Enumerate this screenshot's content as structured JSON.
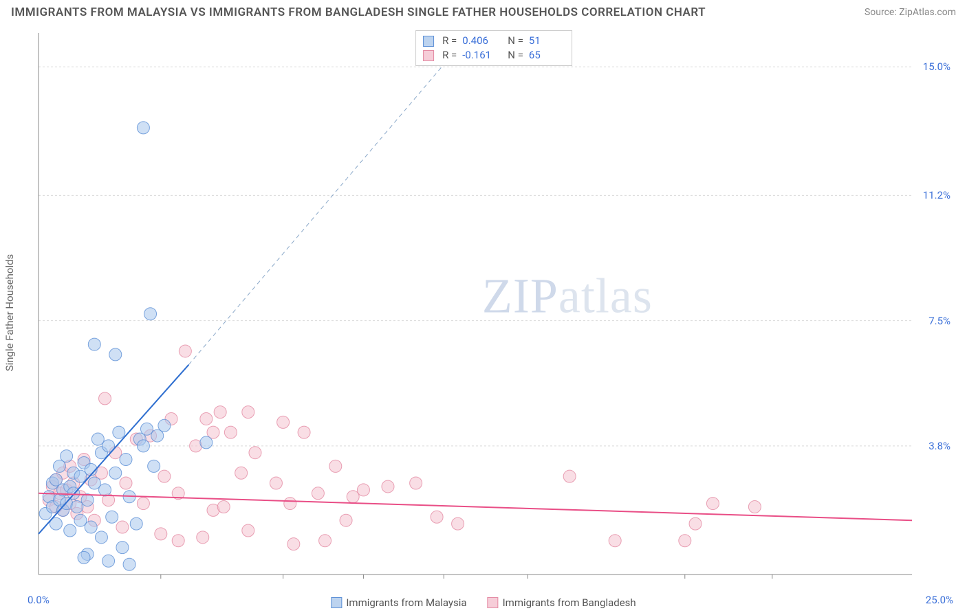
{
  "title": "IMMIGRANTS FROM MALAYSIA VS IMMIGRANTS FROM BANGLADESH SINGLE FATHER HOUSEHOLDS CORRELATION CHART",
  "source": "Source: ZipAtlas.com",
  "y_axis_label": "Single Father Households",
  "watermark_a": "ZIP",
  "watermark_b": "atlas",
  "chart": {
    "type": "scatter",
    "background_color": "#ffffff",
    "grid_color": "#d9d9d9",
    "grid_dash": "3,3",
    "axis_color": "#888888",
    "xlim": [
      0,
      25.0
    ],
    "ylim": [
      0,
      16.0
    ],
    "x_origin_label": "0.0%",
    "x_max_label": "25.0%",
    "y_ticks": [
      {
        "value": 3.8,
        "label": "3.8%"
      },
      {
        "value": 7.5,
        "label": "7.5%"
      },
      {
        "value": 11.2,
        "label": "11.2%"
      },
      {
        "value": 15.0,
        "label": "15.0%"
      }
    ],
    "x_tick_positions": [
      3.5,
      7.0,
      9.3,
      11.6,
      14.0,
      18.5,
      21.0
    ],
    "marker_radius": 9,
    "marker_opacity": 0.55,
    "series": [
      {
        "name": "Immigrants from Malaysia",
        "color_fill": "#a8c6ec",
        "color_stroke": "#5b8fd6",
        "legend_fill": "#bcd3ef",
        "R": "0.406",
        "N": "51",
        "trend": {
          "x1": 0.0,
          "y1": 1.2,
          "x2": 4.3,
          "y2": 6.2,
          "color": "#2f6fd0",
          "width": 2
        },
        "trend_ext": {
          "x1": 4.3,
          "y1": 6.2,
          "x2": 12.2,
          "y2": 15.8,
          "color": "#8aa8c9",
          "dash": "6,5",
          "width": 1
        },
        "points": [
          [
            0.2,
            1.8
          ],
          [
            0.3,
            2.3
          ],
          [
            0.4,
            2.0
          ],
          [
            0.4,
            2.7
          ],
          [
            0.5,
            1.5
          ],
          [
            0.5,
            2.8
          ],
          [
            0.6,
            2.2
          ],
          [
            0.6,
            3.2
          ],
          [
            0.7,
            1.9
          ],
          [
            0.7,
            2.5
          ],
          [
            0.8,
            2.1
          ],
          [
            0.8,
            3.5
          ],
          [
            0.9,
            2.6
          ],
          [
            0.9,
            1.3
          ],
          [
            1.0,
            2.4
          ],
          [
            1.0,
            3.0
          ],
          [
            1.1,
            2.0
          ],
          [
            1.2,
            2.9
          ],
          [
            1.2,
            1.6
          ],
          [
            1.3,
            3.3
          ],
          [
            1.4,
            2.2
          ],
          [
            1.4,
            0.6
          ],
          [
            1.5,
            3.1
          ],
          [
            1.5,
            1.4
          ],
          [
            1.6,
            2.7
          ],
          [
            1.7,
            4.0
          ],
          [
            1.8,
            1.1
          ],
          [
            1.8,
            3.6
          ],
          [
            1.9,
            2.5
          ],
          [
            2.0,
            0.4
          ],
          [
            2.0,
            3.8
          ],
          [
            2.1,
            1.7
          ],
          [
            2.2,
            3.0
          ],
          [
            2.3,
            4.2
          ],
          [
            2.4,
            0.8
          ],
          [
            2.5,
            3.4
          ],
          [
            2.6,
            2.3
          ],
          [
            2.8,
            1.5
          ],
          [
            2.9,
            4.0
          ],
          [
            3.0,
            3.8
          ],
          [
            3.1,
            4.3
          ],
          [
            3.3,
            3.2
          ],
          [
            3.4,
            4.1
          ],
          [
            3.6,
            4.4
          ],
          [
            1.6,
            6.8
          ],
          [
            2.2,
            6.5
          ],
          [
            3.2,
            7.7
          ],
          [
            4.8,
            3.9
          ],
          [
            1.3,
            0.5
          ],
          [
            2.6,
            0.3
          ],
          [
            3.0,
            13.2
          ]
        ]
      },
      {
        "name": "Immigrants from Bangladesh",
        "color_fill": "#f4c2cf",
        "color_stroke": "#e48aa3",
        "legend_fill": "#f6cdd8",
        "R": "-0.161",
        "N": "65",
        "trend": {
          "x1": 0.0,
          "y1": 2.4,
          "x2": 25.0,
          "y2": 1.6,
          "color": "#e94e86",
          "width": 2
        },
        "points": [
          [
            0.3,
            2.2
          ],
          [
            0.4,
            2.6
          ],
          [
            0.5,
            2.0
          ],
          [
            0.5,
            2.8
          ],
          [
            0.6,
            2.4
          ],
          [
            0.7,
            1.9
          ],
          [
            0.7,
            3.0
          ],
          [
            0.8,
            2.5
          ],
          [
            0.9,
            2.1
          ],
          [
            0.9,
            3.2
          ],
          [
            1.0,
            2.7
          ],
          [
            1.1,
            1.8
          ],
          [
            1.2,
            2.3
          ],
          [
            1.3,
            3.4
          ],
          [
            1.4,
            2.0
          ],
          [
            1.5,
            2.8
          ],
          [
            1.6,
            1.6
          ],
          [
            1.8,
            3.0
          ],
          [
            1.9,
            5.2
          ],
          [
            2.0,
            2.2
          ],
          [
            2.2,
            3.6
          ],
          [
            2.4,
            1.4
          ],
          [
            2.5,
            2.7
          ],
          [
            2.8,
            4.0
          ],
          [
            3.0,
            2.1
          ],
          [
            3.2,
            4.1
          ],
          [
            3.5,
            1.2
          ],
          [
            3.6,
            2.9
          ],
          [
            3.8,
            4.6
          ],
          [
            4.0,
            2.4
          ],
          [
            4.2,
            6.6
          ],
          [
            4.5,
            3.8
          ],
          [
            4.7,
            1.1
          ],
          [
            4.8,
            4.6
          ],
          [
            5.0,
            1.9
          ],
          [
            5.2,
            4.8
          ],
          [
            5.3,
            2.0
          ],
          [
            5.5,
            4.2
          ],
          [
            5.8,
            3.0
          ],
          [
            6.0,
            1.3
          ],
          [
            6.2,
            3.6
          ],
          [
            6.8,
            2.7
          ],
          [
            7.0,
            4.5
          ],
          [
            7.2,
            2.1
          ],
          [
            7.3,
            0.9
          ],
          [
            7.6,
            4.2
          ],
          [
            8.0,
            2.4
          ],
          [
            8.2,
            1.0
          ],
          [
            8.5,
            3.2
          ],
          [
            8.8,
            1.6
          ],
          [
            9.0,
            2.3
          ],
          [
            9.3,
            2.5
          ],
          [
            10.0,
            2.6
          ],
          [
            10.8,
            2.7
          ],
          [
            11.4,
            1.7
          ],
          [
            12.0,
            1.5
          ],
          [
            15.2,
            2.9
          ],
          [
            16.5,
            1.0
          ],
          [
            18.5,
            1.0
          ],
          [
            18.8,
            1.5
          ],
          [
            19.3,
            2.1
          ],
          [
            20.5,
            2.0
          ],
          [
            5.0,
            4.2
          ],
          [
            6.0,
            4.8
          ],
          [
            4.0,
            1.0
          ]
        ]
      }
    ]
  },
  "bottom_legend": [
    {
      "label": "Immigrants from Malaysia",
      "fill": "#bcd3ef",
      "stroke": "#5b8fd6"
    },
    {
      "label": "Immigrants from Bangladesh",
      "fill": "#f6cdd8",
      "stroke": "#e48aa3"
    }
  ]
}
